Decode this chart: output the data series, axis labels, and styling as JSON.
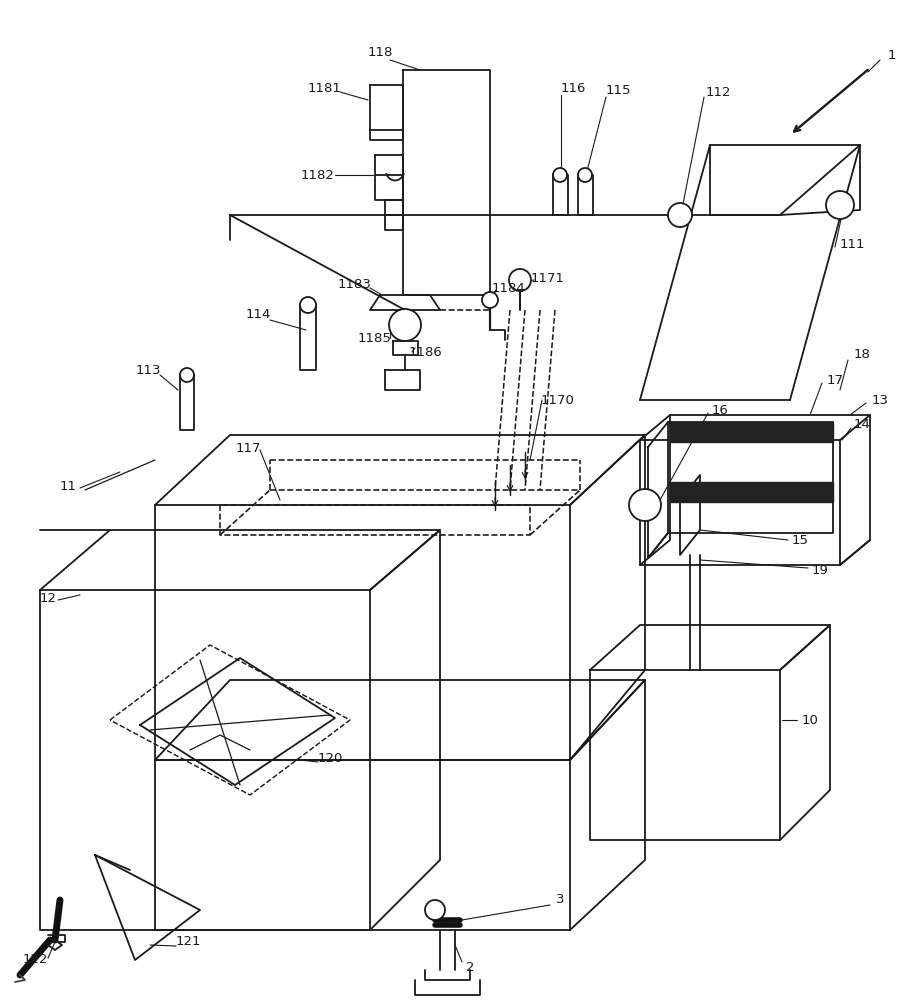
{
  "bg_color": "#ffffff",
  "line_color": "#1a1a1a",
  "lw": 1.3,
  "fig_width": 9.2,
  "fig_height": 10.0
}
